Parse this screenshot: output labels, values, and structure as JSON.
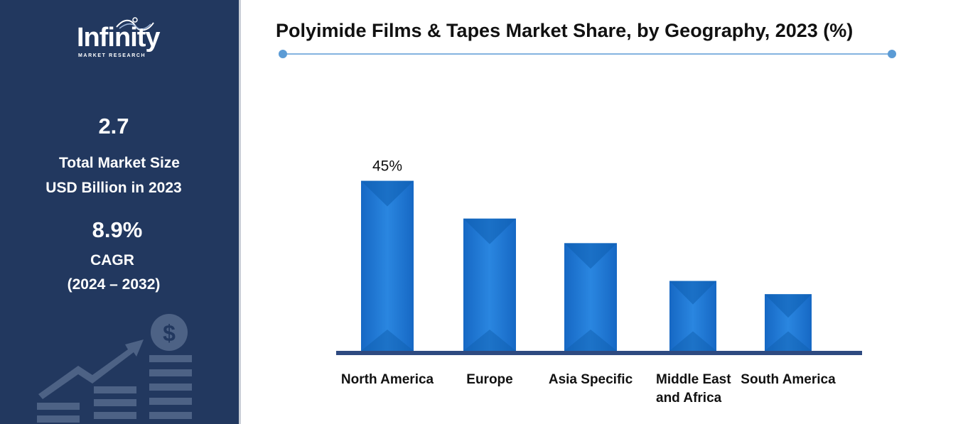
{
  "sidebar": {
    "logo_text": "Infinity",
    "logo_subtext": "MARKET RESEARCH",
    "market_size_value": "2.7",
    "market_size_label_line1": "Total Market Size",
    "market_size_label_line2": "USD Billion in 2023",
    "cagr_value": "8.9%",
    "cagr_label": "CAGR",
    "cagr_period": "(2024 – 2032)"
  },
  "icons": [
    "growth-arrow-icon",
    "dollar-coin-icon",
    "bar-stack-icon"
  ],
  "colors": {
    "sidebar_bg": "#22385f",
    "bar": "#1f78d1",
    "bar_dark": "#0f5fb0",
    "axis": "#2e4a80",
    "accent_line": "#5b9bd5"
  },
  "chart_data": {
    "type": "bar",
    "title": "Polyimide Films & Tapes Market Share, by Geography, 2023 (%)",
    "xlabel": "",
    "ylabel": "",
    "categories": [
      [
        "North America"
      ],
      [
        "Europe"
      ],
      [
        "Asia Specific"
      ],
      [
        "Middle East",
        "and Africa"
      ],
      [
        "South America"
      ]
    ],
    "values": [
      45,
      35,
      28.5,
      18.5,
      15
    ],
    "data_labels": [
      "45%",
      "",
      "",
      "",
      ""
    ],
    "ylim": [
      0,
      50
    ],
    "grid": false,
    "legend": "none"
  }
}
